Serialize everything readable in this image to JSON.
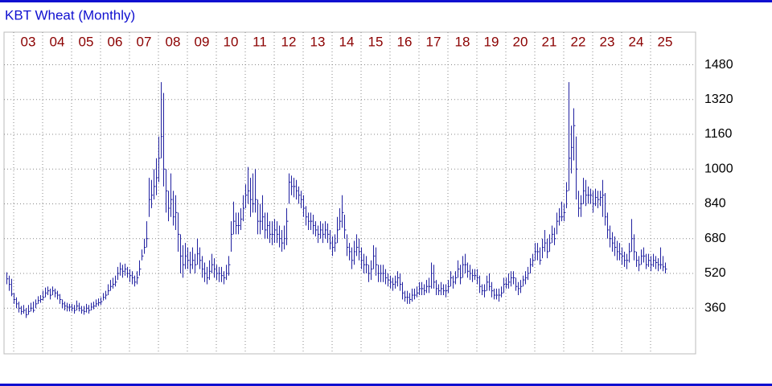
{
  "chart_data": {
    "type": "ohlc",
    "title": "KBT Wheat (Monthly)",
    "color": "#2020a0",
    "grid": true,
    "ylim": [
      150,
      1630
    ],
    "yticks": [
      360,
      520,
      680,
      840,
      1000,
      1160,
      1320,
      1480
    ],
    "categories": [
      null,
      null,
      null,
      null,
      null,
      null,
      null,
      null,
      null,
      "03",
      null,
      null,
      null,
      null,
      null,
      null,
      null,
      null,
      null,
      null,
      null,
      "04",
      null,
      null,
      null,
      null,
      null,
      null,
      null,
      null,
      null,
      null,
      null,
      "05",
      null,
      null,
      null,
      null,
      null,
      null,
      null,
      null,
      null,
      null,
      null,
      "06",
      null,
      null,
      null,
      null,
      null,
      null,
      null,
      null,
      null,
      null,
      null,
      "07",
      null,
      null,
      null,
      null,
      null,
      null,
      null,
      null,
      null,
      null,
      null,
      "08",
      null,
      null,
      null,
      null,
      null,
      null,
      null,
      null,
      null,
      null,
      null,
      "09",
      null,
      null,
      null,
      null,
      null,
      null,
      null,
      null,
      null,
      null,
      null,
      "10",
      null,
      null,
      null,
      null,
      null,
      null,
      null,
      null,
      null,
      null,
      null,
      "11",
      null,
      null,
      null,
      null,
      null,
      null,
      null,
      null,
      null,
      null,
      null,
      "12",
      null,
      null,
      null,
      null,
      null,
      null,
      null,
      null,
      null,
      null,
      null,
      "13",
      null,
      null,
      null,
      null,
      null,
      null,
      null,
      null,
      null,
      null,
      null,
      "14",
      null,
      null,
      null,
      null,
      null,
      null,
      null,
      null,
      null,
      null,
      null,
      "15",
      null,
      null,
      null,
      null,
      null,
      null,
      null,
      null,
      null,
      null,
      null,
      "16",
      null,
      null,
      null,
      null,
      null,
      null,
      null,
      null,
      null,
      null,
      null,
      "17",
      null,
      null,
      null,
      null,
      null,
      null,
      null,
      null,
      null,
      null,
      null,
      "18",
      null,
      null,
      null,
      null,
      null,
      null,
      null,
      null,
      null,
      null,
      null,
      "19",
      null,
      null,
      null,
      null,
      null,
      null,
      null,
      null,
      null,
      null,
      null,
      "20",
      null,
      null,
      null,
      null,
      null,
      null,
      null,
      null,
      null,
      null,
      null,
      "21",
      null,
      null,
      null,
      null,
      null,
      null,
      null,
      null,
      null,
      null,
      null,
      "22",
      null,
      null,
      null,
      null,
      null,
      null,
      null,
      null,
      null,
      null,
      null,
      "23",
      null,
      null,
      null,
      null,
      null,
      null,
      null,
      null,
      null,
      null,
      null,
      "24",
      null,
      null,
      null,
      null,
      null,
      null,
      null,
      null,
      null,
      null,
      null,
      "25"
    ],
    "high": [
      525,
      510,
      495,
      430,
      410,
      390,
      370,
      375,
      360,
      375,
      385,
      390,
      400,
      415,
      420,
      440,
      455,
      460,
      450,
      460,
      450,
      440,
      425,
      400,
      390,
      385,
      380,
      380,
      375,
      395,
      385,
      370,
      370,
      380,
      375,
      385,
      390,
      400,
      405,
      410,
      430,
      440,
      470,
      490,
      500,
      510,
      550,
      570,
      560,
      565,
      550,
      540,
      530,
      510,
      530,
      580,
      630,
      680,
      760,
      960,
      950,
      1000,
      1050,
      1150,
      1400,
      1350,
      1000,
      900,
      980,
      900,
      880,
      800,
      700,
      650,
      660,
      640,
      620,
      640,
      610,
      680,
      640,
      600,
      570,
      550,
      580,
      610,
      590,
      560,
      550,
      550,
      530,
      560,
      600,
      760,
      850,
      800,
      800,
      820,
      880,
      930,
      1010,
      960,
      980,
      1000,
      860,
      840,
      880,
      800,
      800,
      760,
      760,
      770,
      760,
      740,
      720,
      740,
      820,
      980,
      970,
      960,
      950,
      920,
      900,
      880,
      830,
      800,
      800,
      790,
      760,
      740,
      760,
      750,
      760,
      750,
      720,
      690,
      700,
      780,
      820,
      880,
      790,
      700,
      660,
      640,
      670,
      700,
      680,
      640,
      610,
      600,
      560,
      580,
      650,
      640,
      560,
      560,
      560,
      540,
      520,
      510,
      500,
      510,
      530,
      520,
      480,
      440,
      440,
      430,
      450,
      450,
      460,
      480,
      480,
      470,
      490,
      500,
      570,
      560,
      490,
      470,
      480,
      470,
      470,
      490,
      530,
      510,
      530,
      580,
      560,
      600,
      610,
      570,
      560,
      540,
      540,
      540,
      510,
      470,
      470,
      510,
      520,
      480,
      450,
      450,
      450,
      460,
      500,
      500,
      520,
      530,
      530,
      500,
      480,
      490,
      510,
      530,
      550,
      590,
      610,
      660,
      660,
      640,
      680,
      720,
      680,
      700,
      740,
      730,
      800,
      820,
      850,
      840,
      940,
      1400,
      1200,
      1280,
      1150,
      900,
      880,
      960,
      950,
      920,
      910,
      900,
      910,
      900,
      900,
      950,
      890,
      800,
      740,
      710,
      690,
      670,
      660,
      640,
      620,
      610,
      660,
      770,
      700,
      620,
      600,
      630,
      640,
      610,
      610,
      600,
      610,
      600,
      590,
      640,
      600,
      570
    ],
    "low": [
      470,
      440,
      415,
      380,
      360,
      340,
      330,
      335,
      315,
      330,
      345,
      340,
      360,
      380,
      385,
      395,
      410,
      420,
      400,
      420,
      410,
      400,
      380,
      360,
      350,
      345,
      345,
      345,
      335,
      350,
      345,
      335,
      330,
      340,
      335,
      350,
      355,
      365,
      370,
      375,
      395,
      400,
      420,
      440,
      450,
      460,
      490,
      510,
      500,
      510,
      500,
      480,
      470,
      460,
      470,
      510,
      580,
      610,
      640,
      780,
      820,
      860,
      880,
      940,
      1050,
      920,
      800,
      760,
      780,
      740,
      720,
      620,
      520,
      500,
      540,
      540,
      520,
      540,
      520,
      560,
      540,
      500,
      480,
      470,
      490,
      520,
      500,
      490,
      480,
      480,
      470,
      490,
      510,
      620,
      700,
      700,
      700,
      720,
      760,
      820,
      840,
      780,
      800,
      800,
      700,
      700,
      720,
      680,
      680,
      660,
      650,
      660,
      660,
      640,
      620,
      630,
      650,
      840,
      880,
      870,
      860,
      840,
      820,
      780,
      740,
      720,
      720,
      700,
      690,
      660,
      680,
      660,
      680,
      660,
      630,
      600,
      620,
      660,
      720,
      730,
      680,
      600,
      580,
      540,
      560,
      600,
      580,
      540,
      520,
      520,
      480,
      490,
      540,
      510,
      480,
      480,
      480,
      470,
      460,
      450,
      440,
      450,
      460,
      440,
      400,
      390,
      380,
      380,
      390,
      400,
      410,
      420,
      420,
      420,
      430,
      430,
      450,
      450,
      420,
      420,
      420,
      420,
      410,
      430,
      460,
      450,
      470,
      500,
      470,
      500,
      520,
      500,
      490,
      480,
      490,
      470,
      430,
      420,
      410,
      440,
      440,
      410,
      400,
      400,
      390,
      410,
      430,
      450,
      450,
      460,
      470,
      440,
      420,
      430,
      460,
      470,
      490,
      520,
      550,
      580,
      580,
      560,
      590,
      620,
      590,
      620,
      660,
      650,
      700,
      740,
      760,
      760,
      820,
      900,
      980,
      1040,
      860,
      780,
      780,
      840,
      830,
      840,
      840,
      800,
      830,
      820,
      830,
      780,
      740,
      680,
      640,
      620,
      600,
      580,
      580,
      560,
      550,
      540,
      570,
      620,
      580,
      550,
      530,
      560,
      570,
      540,
      550,
      530,
      550,
      540,
      530,
      540,
      530,
      520
    ],
    "close": [
      495,
      470,
      425,
      400,
      380,
      360,
      345,
      350,
      330,
      345,
      360,
      350,
      380,
      395,
      400,
      410,
      430,
      440,
      420,
      440,
      430,
      420,
      400,
      380,
      370,
      365,
      365,
      360,
      350,
      370,
      360,
      350,
      345,
      360,
      350,
      365,
      370,
      380,
      385,
      390,
      410,
      420,
      440,
      460,
      470,
      480,
      520,
      540,
      530,
      540,
      520,
      510,
      500,
      480,
      500,
      540,
      600,
      640,
      680,
      860,
      880,
      920,
      960,
      1050,
      1150,
      1000,
      900,
      820,
      860,
      780,
      800,
      700,
      600,
      560,
      600,
      580,
      560,
      580,
      560,
      610,
      580,
      540,
      520,
      500,
      530,
      560,
      540,
      520,
      520,
      510,
      500,
      520,
      560,
      700,
      760,
      740,
      740,
      770,
      820,
      880,
      900,
      860,
      840,
      860,
      760,
      760,
      780,
      720,
      740,
      700,
      700,
      720,
      700,
      680,
      660,
      680,
      760,
      940,
      920,
      920,
      900,
      880,
      860,
      820,
      780,
      760,
      760,
      740,
      720,
      700,
      720,
      700,
      720,
      700,
      660,
      640,
      660,
      720,
      760,
      800,
      720,
      640,
      620,
      580,
      620,
      640,
      620,
      580,
      560,
      560,
      520,
      540,
      600,
      560,
      520,
      520,
      520,
      500,
      490,
      480,
      470,
      480,
      500,
      470,
      430,
      410,
      410,
      400,
      420,
      420,
      430,
      450,
      450,
      440,
      460,
      460,
      520,
      480,
      450,
      440,
      450,
      440,
      440,
      460,
      500,
      480,
      500,
      540,
      500,
      560,
      560,
      530,
      520,
      510,
      510,
      500,
      460,
      440,
      440,
      480,
      460,
      440,
      420,
      420,
      420,
      430,
      470,
      470,
      480,
      500,
      500,
      460,
      450,
      460,
      490,
      500,
      520,
      560,
      580,
      620,
      620,
      580,
      640,
      660,
      620,
      660,
      700,
      680,
      760,
      780,
      780,
      800,
      900,
      1050,
      1100,
      1200,
      1000,
      820,
      840,
      900,
      880,
      880,
      880,
      840,
      870,
      860,
      870,
      880,
      780,
      720,
      680,
      660,
      640,
      620,
      610,
      600,
      580,
      580,
      620,
      680,
      620,
      580,
      560,
      600,
      600,
      560,
      580,
      560,
      580,
      570,
      560,
      560,
      550,
      540
    ]
  }
}
